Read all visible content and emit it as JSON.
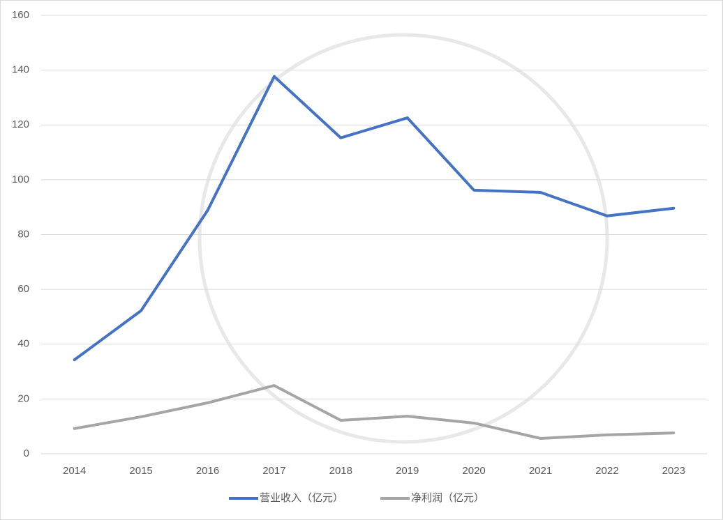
{
  "chart_data": {
    "type": "line",
    "categories": [
      "2014",
      "2015",
      "2016",
      "2017",
      "2018",
      "2019",
      "2020",
      "2021",
      "2022",
      "2023"
    ],
    "series": [
      {
        "name": "营业收入（亿元）",
        "color": "#4472c4",
        "values": [
          34.3,
          52.2,
          88.8,
          137.7,
          115.3,
          122.6,
          96.2,
          95.4,
          86.8,
          89.6
        ]
      },
      {
        "name": "净利润（亿元）",
        "color": "#a5a5a5",
        "values": [
          9.2,
          13.5,
          18.6,
          24.9,
          12.2,
          13.7,
          11.2,
          5.6,
          6.9,
          7.6
        ]
      }
    ],
    "ylim": [
      0,
      160
    ],
    "yticks": [
      0,
      20,
      40,
      60,
      80,
      100,
      120,
      140,
      160
    ],
    "grid": true,
    "legend": "bottom"
  }
}
